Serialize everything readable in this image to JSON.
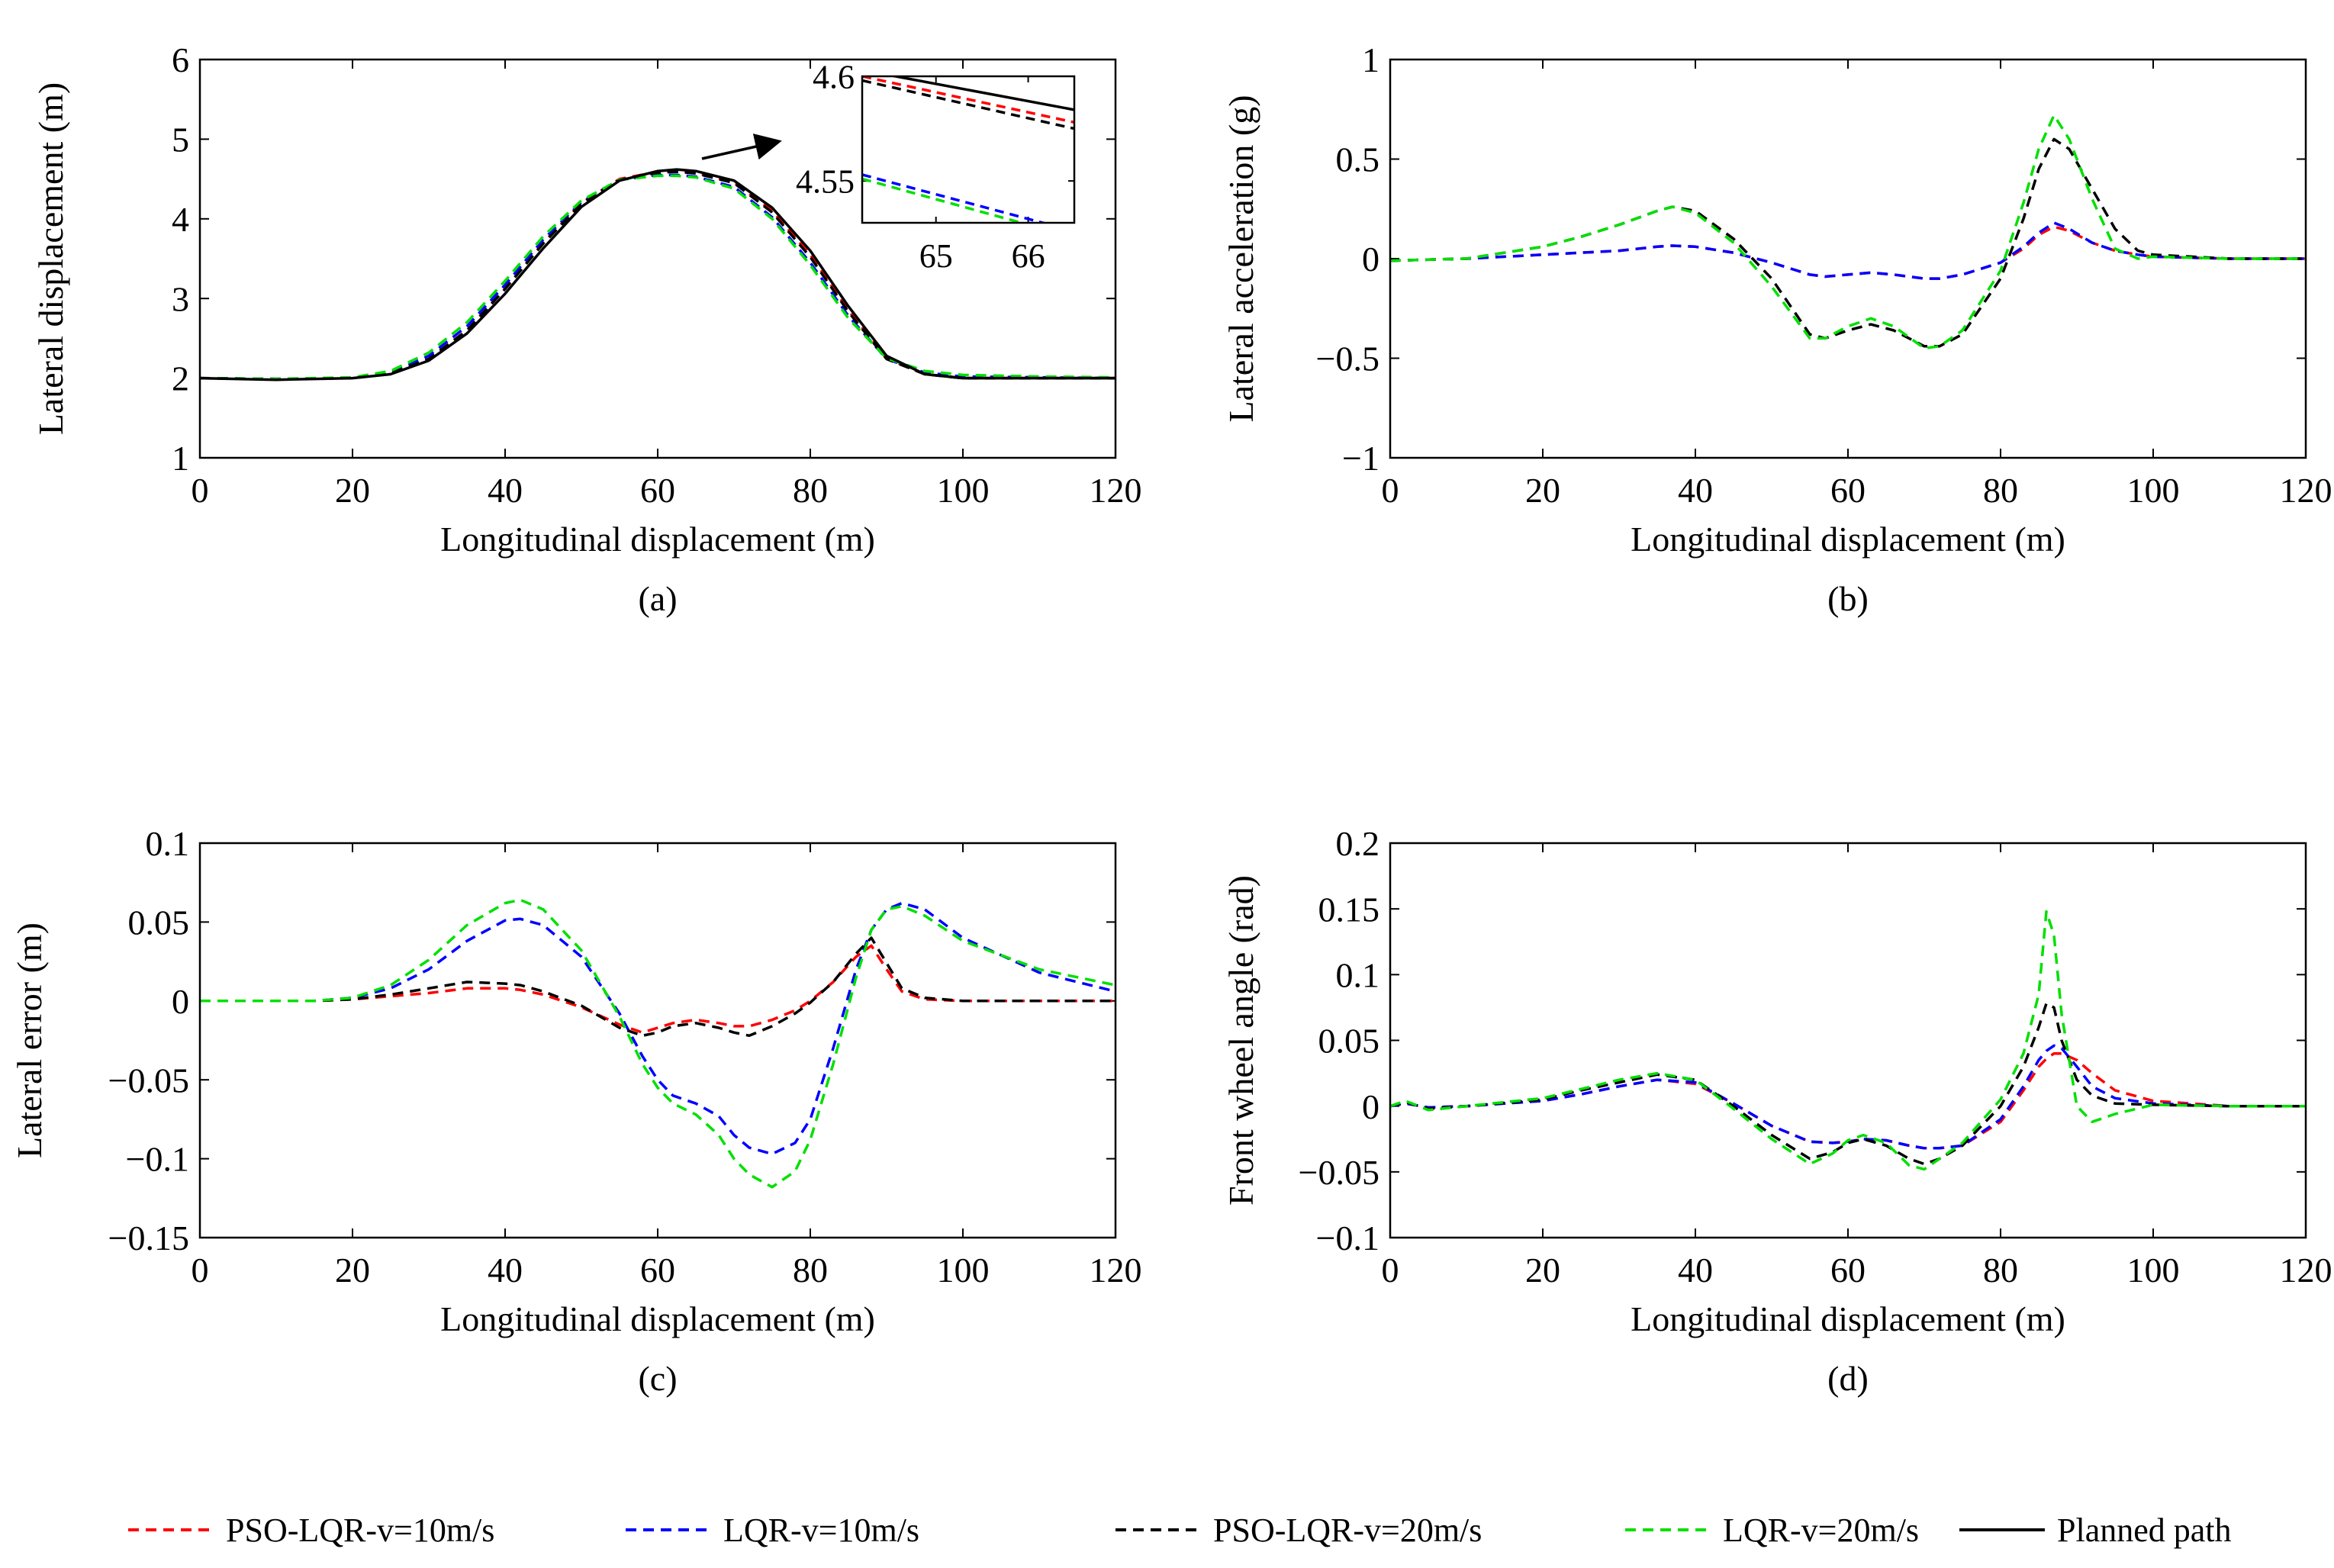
{
  "legend": [
    {
      "label": "PSO-LQR-v=10m/s",
      "color": "#ff0000",
      "dash": true
    },
    {
      "label": "LQR-v=10m/s",
      "color": "#0000ff",
      "dash": true
    },
    {
      "label": "PSO-LQR-v=20m/s",
      "color": "#000000",
      "dash": true
    },
    {
      "label": "LQR-v=20m/s",
      "color": "#00e000",
      "dash": true
    },
    {
      "label": "Planned path",
      "color": "#000000",
      "dash": false
    }
  ],
  "chart_data": [
    {
      "type": "line",
      "caption": "(a)",
      "xlabel": "Longitudinal displacement (m)",
      "ylabel": "Lateral displacement (m)",
      "xlim": [
        0,
        120
      ],
      "ylim": [
        1,
        6
      ],
      "xticks": [
        0,
        20,
        40,
        60,
        80,
        100,
        120
      ],
      "yticks": [
        1,
        2,
        3,
        4,
        5,
        6
      ],
      "x": [
        0,
        10,
        20,
        25,
        30,
        35,
        40,
        45,
        50,
        55,
        60,
        62.5,
        65,
        70,
        75,
        80,
        85,
        90,
        95,
        100,
        110,
        120
      ],
      "series": [
        {
          "name": "PSO-LQR-v=10m/s",
          "values": [
            2,
            1.99,
            2.0,
            2.06,
            2.24,
            2.6,
            3.12,
            3.7,
            4.2,
            4.5,
            4.59,
            4.6,
            4.58,
            4.46,
            4.1,
            3.55,
            2.85,
            2.25,
            2.05,
            2.0,
            2.0,
            2.0
          ]
        },
        {
          "name": "LQR-v=10m/s",
          "values": [
            2,
            1.99,
            2.0,
            2.07,
            2.28,
            2.65,
            3.17,
            3.74,
            4.21,
            4.49,
            4.55,
            4.55,
            4.53,
            4.4,
            4.02,
            3.45,
            2.78,
            2.24,
            2.07,
            2.02,
            2.01,
            2.0
          ]
        },
        {
          "name": "PSO-LQR-v=20m/s",
          "values": [
            2,
            1.99,
            2.0,
            2.06,
            2.24,
            2.6,
            3.12,
            3.69,
            4.19,
            4.49,
            4.58,
            4.59,
            4.57,
            4.45,
            4.08,
            3.52,
            2.83,
            2.24,
            2.05,
            2.0,
            2.0,
            2.0
          ]
        },
        {
          "name": "LQR-v=20m/s",
          "values": [
            2,
            1.99,
            2.01,
            2.09,
            2.32,
            2.7,
            3.22,
            3.78,
            4.23,
            4.49,
            4.54,
            4.54,
            4.52,
            4.38,
            4.0,
            3.42,
            2.75,
            2.25,
            2.09,
            2.04,
            2.02,
            2.01
          ]
        },
        {
          "name": "Planned path",
          "values": [
            2,
            1.98,
            2.0,
            2.05,
            2.22,
            2.56,
            3.06,
            3.63,
            4.15,
            4.48,
            4.6,
            4.62,
            4.6,
            4.48,
            4.14,
            3.6,
            2.9,
            2.28,
            2.05,
            2.0,
            2.0,
            2.0
          ]
        }
      ],
      "inset": {
        "xlim": [
          64.2,
          66.5
        ],
        "ylim": [
          4.53,
          4.6
        ],
        "xticks": [
          65,
          66
        ],
        "yticks": [
          4.55,
          4.6
        ],
        "x": [
          64.2,
          66.5
        ],
        "series": [
          {
            "name": "PSO-LQR-v=10m/s",
            "values": [
              4.6,
              4.578
            ]
          },
          {
            "name": "LQR-v=10m/s",
            "values": [
              4.553,
              4.526
            ]
          },
          {
            "name": "PSO-LQR-v=20m/s",
            "values": [
              4.598,
              4.575
            ]
          },
          {
            "name": "LQR-v=20m/s",
            "values": [
              4.551,
              4.523
            ]
          },
          {
            "name": "Planned path",
            "values": [
              4.603,
              4.584
            ]
          }
        ]
      }
    },
    {
      "type": "line",
      "caption": "(b)",
      "xlabel": "Longitudinal displacement (m)",
      "ylabel": "Lateral acceleration (g)",
      "xlim": [
        0,
        120
      ],
      "ylim": [
        -1,
        1
      ],
      "xticks": [
        0,
        20,
        40,
        60,
        80,
        100,
        120
      ],
      "yticks": [
        -1,
        -0.5,
        0,
        0.5,
        1
      ],
      "x": [
        0,
        10,
        20,
        25,
        30,
        35,
        37,
        40,
        45,
        50,
        55,
        57,
        60,
        63,
        66,
        70,
        72,
        75,
        80,
        83,
        85,
        87,
        89,
        92,
        95,
        98,
        100,
        110,
        120
      ],
      "series": [
        {
          "name": "PSO-LQR-v=10m/s",
          "values": [
            -0.01,
            0.0,
            0.02,
            0.03,
            0.04,
            0.06,
            0.065,
            0.06,
            0.03,
            -0.02,
            -0.08,
            -0.09,
            -0.08,
            -0.07,
            -0.08,
            -0.1,
            -0.1,
            -0.08,
            -0.02,
            0.05,
            0.12,
            0.16,
            0.14,
            0.08,
            0.04,
            0.02,
            0.01,
            0.0,
            0.0
          ]
        },
        {
          "name": "LQR-v=10m/s",
          "values": [
            -0.01,
            0.0,
            0.02,
            0.03,
            0.04,
            0.06,
            0.065,
            0.06,
            0.03,
            -0.02,
            -0.08,
            -0.09,
            -0.08,
            -0.07,
            -0.08,
            -0.1,
            -0.1,
            -0.08,
            -0.02,
            0.06,
            0.13,
            0.18,
            0.15,
            0.08,
            0.04,
            0.02,
            0.01,
            0.0,
            0.0
          ]
        },
        {
          "name": "PSO-LQR-v=20m/s",
          "values": [
            -0.01,
            0.0,
            0.06,
            0.11,
            0.17,
            0.24,
            0.26,
            0.24,
            0.1,
            -0.1,
            -0.38,
            -0.4,
            -0.36,
            -0.33,
            -0.36,
            -0.44,
            -0.44,
            -0.38,
            -0.1,
            0.2,
            0.45,
            0.6,
            0.55,
            0.35,
            0.15,
            0.04,
            0.02,
            0.0,
            0.0
          ]
        },
        {
          "name": "LQR-v=20m/s",
          "values": [
            -0.01,
            0.0,
            0.06,
            0.11,
            0.17,
            0.24,
            0.26,
            0.23,
            0.08,
            -0.14,
            -0.4,
            -0.4,
            -0.34,
            -0.3,
            -0.34,
            -0.45,
            -0.44,
            -0.36,
            -0.06,
            0.28,
            0.55,
            0.72,
            0.6,
            0.3,
            0.05,
            0.0,
            0.01,
            0.0,
            0.0
          ]
        }
      ]
    },
    {
      "type": "line",
      "caption": "(c)",
      "xlabel": "Longitudinal displacement (m)",
      "ylabel": "Lateral error (m)",
      "xlim": [
        0,
        120
      ],
      "ylim": [
        -0.15,
        0.1
      ],
      "xticks": [
        0,
        20,
        40,
        60,
        80,
        100,
        120
      ],
      "yticks": [
        -0.15,
        -0.1,
        -0.05,
        0,
        0.05,
        0.1
      ],
      "x": [
        0,
        10,
        15,
        20,
        25,
        30,
        35,
        40,
        42,
        45,
        50,
        55,
        58,
        60,
        62,
        65,
        68,
        70,
        72,
        75,
        78,
        80,
        83,
        86,
        88,
        90,
        92,
        95,
        100,
        110,
        120
      ],
      "series": [
        {
          "name": "PSO-LQR-v=10m/s",
          "values": [
            0,
            0,
            0,
            0.001,
            0.003,
            0.005,
            0.008,
            0.008,
            0.007,
            0.004,
            -0.004,
            -0.015,
            -0.02,
            -0.017,
            -0.014,
            -0.012,
            -0.014,
            -0.016,
            -0.016,
            -0.012,
            -0.006,
            0.0,
            0.012,
            0.028,
            0.035,
            0.02,
            0.006,
            0.001,
            0.0,
            0.0,
            0.0
          ]
        },
        {
          "name": "LQR-v=10m/s",
          "values": [
            0,
            0,
            0,
            0.002,
            0.008,
            0.02,
            0.038,
            0.051,
            0.052,
            0.048,
            0.028,
            -0.008,
            -0.035,
            -0.05,
            -0.06,
            -0.065,
            -0.073,
            -0.085,
            -0.093,
            -0.097,
            -0.09,
            -0.075,
            -0.03,
            0.02,
            0.045,
            0.058,
            0.062,
            0.058,
            0.04,
            0.018,
            0.006
          ]
        },
        {
          "name": "PSO-LQR-v=20m/s",
          "values": [
            0,
            0,
            0,
            0.001,
            0.004,
            0.008,
            0.012,
            0.011,
            0.01,
            0.006,
            -0.003,
            -0.017,
            -0.022,
            -0.02,
            -0.016,
            -0.014,
            -0.017,
            -0.02,
            -0.022,
            -0.016,
            -0.008,
            -0.001,
            0.012,
            0.03,
            0.04,
            0.024,
            0.008,
            0.002,
            0.0,
            0.0,
            0.0
          ]
        },
        {
          "name": "LQR-v=20m/s",
          "values": [
            0,
            0,
            0,
            0.002,
            0.01,
            0.026,
            0.048,
            0.062,
            0.064,
            0.058,
            0.032,
            -0.01,
            -0.04,
            -0.055,
            -0.065,
            -0.072,
            -0.085,
            -0.1,
            -0.11,
            -0.118,
            -0.108,
            -0.088,
            -0.04,
            0.015,
            0.045,
            0.058,
            0.06,
            0.054,
            0.038,
            0.02,
            0.01
          ]
        }
      ]
    },
    {
      "type": "line",
      "caption": "(d)",
      "xlabel": "Longitudinal displacement (m)",
      "ylabel": "Front wheel angle (rad)",
      "xlim": [
        0,
        120
      ],
      "ylim": [
        -0.1,
        0.2
      ],
      "xticks": [
        0,
        20,
        40,
        60,
        80,
        100,
        120
      ],
      "yticks": [
        -0.1,
        -0.05,
        0,
        0.05,
        0.1,
        0.15,
        0.2
      ],
      "x": [
        0,
        2,
        5,
        10,
        20,
        25,
        30,
        35,
        40,
        45,
        50,
        55,
        58,
        60,
        62,
        65,
        68,
        70,
        72,
        75,
        80,
        83,
        85,
        86,
        87,
        88,
        90,
        92,
        95,
        100,
        110,
        120
      ],
      "series": [
        {
          "name": "PSO-LQR-v=10m/s",
          "values": [
            0,
            0.002,
            -0.001,
            0,
            0.004,
            0.009,
            0.015,
            0.02,
            0.017,
            0.002,
            -0.015,
            -0.027,
            -0.028,
            -0.027,
            -0.025,
            -0.026,
            -0.03,
            -0.032,
            -0.032,
            -0.03,
            -0.012,
            0.012,
            0.03,
            0.036,
            0.04,
            0.04,
            0.035,
            0.025,
            0.012,
            0.004,
            0.0,
            0.0
          ]
        },
        {
          "name": "LQR-v=10m/s",
          "values": [
            0,
            0.002,
            -0.001,
            0,
            0.004,
            0.009,
            0.015,
            0.02,
            0.018,
            0.002,
            -0.015,
            -0.027,
            -0.028,
            -0.027,
            -0.025,
            -0.026,
            -0.03,
            -0.032,
            -0.032,
            -0.03,
            -0.01,
            0.015,
            0.035,
            0.042,
            0.046,
            0.044,
            0.03,
            0.015,
            0.006,
            0.002,
            0.0,
            0.0
          ]
        },
        {
          "name": "PSO-LQR-v=20m/s",
          "values": [
            0,
            0.003,
            -0.002,
            0,
            0.005,
            0.012,
            0.018,
            0.024,
            0.02,
            0.0,
            -0.022,
            -0.04,
            -0.035,
            -0.028,
            -0.025,
            -0.03,
            -0.04,
            -0.044,
            -0.04,
            -0.03,
            0.0,
            0.03,
            0.06,
            0.078,
            0.075,
            0.05,
            0.02,
            0.008,
            0.002,
            0.001,
            0.0,
            0.0
          ]
        },
        {
          "name": "LQR-v=20m/s",
          "values": [
            0,
            0.004,
            -0.003,
            0,
            0.006,
            0.013,
            0.02,
            0.025,
            0.02,
            -0.002,
            -0.025,
            -0.044,
            -0.036,
            -0.026,
            -0.022,
            -0.028,
            -0.045,
            -0.048,
            -0.04,
            -0.028,
            0.005,
            0.04,
            0.085,
            0.148,
            0.13,
            0.07,
            0.0,
            -0.012,
            -0.006,
            0.001,
            0.0,
            0.0
          ]
        }
      ]
    }
  ]
}
